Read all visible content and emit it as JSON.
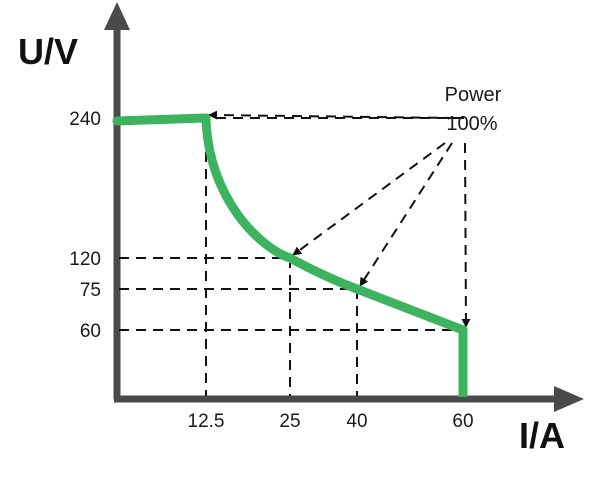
{
  "chart_data": {
    "type": "line",
    "xlabel": "I/A",
    "ylabel": "U/V",
    "x_ticks": [
      12.5,
      25,
      40,
      60
    ],
    "y_ticks": [
      240,
      120,
      75,
      60
    ],
    "x_tick_labels": [
      "12.5",
      "25",
      "40",
      "60"
    ],
    "y_tick_labels": [
      "240",
      "120",
      "75",
      "60"
    ],
    "annotation": {
      "line1": "Power",
      "line2": "100%"
    },
    "series": [
      {
        "constant_voltage": [
          [
            0,
            240
          ],
          [
            12.5,
            240
          ]
        ],
        "constant_power_knee_points": [
          [
            12.5,
            240
          ],
          [
            25,
            120
          ],
          [
            40,
            75
          ],
          [
            60,
            60
          ]
        ],
        "constant_current": [
          [
            60,
            60
          ],
          [
            60,
            0
          ]
        ]
      }
    ],
    "grid": false,
    "colors": {
      "curve": "#3db35f",
      "axis": "#4a4a4a",
      "guides": "#111111"
    }
  }
}
